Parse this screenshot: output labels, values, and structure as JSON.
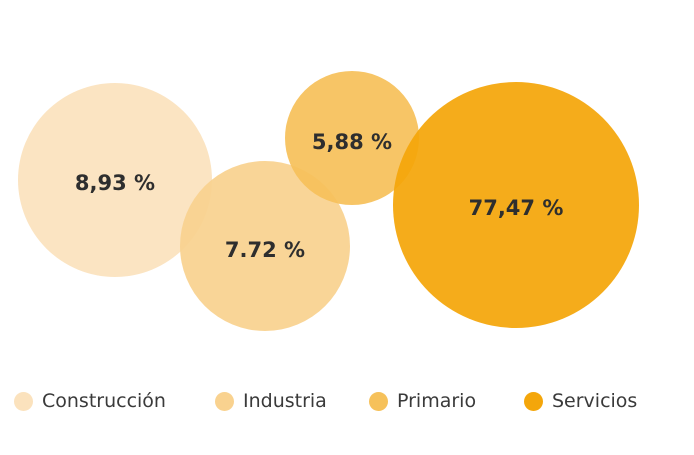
{
  "chart_data": {
    "type": "bubble",
    "series": [
      {
        "name": "Construcción",
        "value": 8.93,
        "label": "8,93 %",
        "color": "#fbe2bd"
      },
      {
        "name": "Industria",
        "value": 7.72,
        "label": "7.72 %",
        "color": "#f9d28f"
      },
      {
        "name": "Primario",
        "value": 5.88,
        "label": "5,88 %",
        "color": "#f6c15a"
      },
      {
        "name": "Servicios",
        "value": 77.47,
        "label": "77,47 %",
        "color": "#f4a60a"
      }
    ],
    "legend_position": "bottom"
  }
}
